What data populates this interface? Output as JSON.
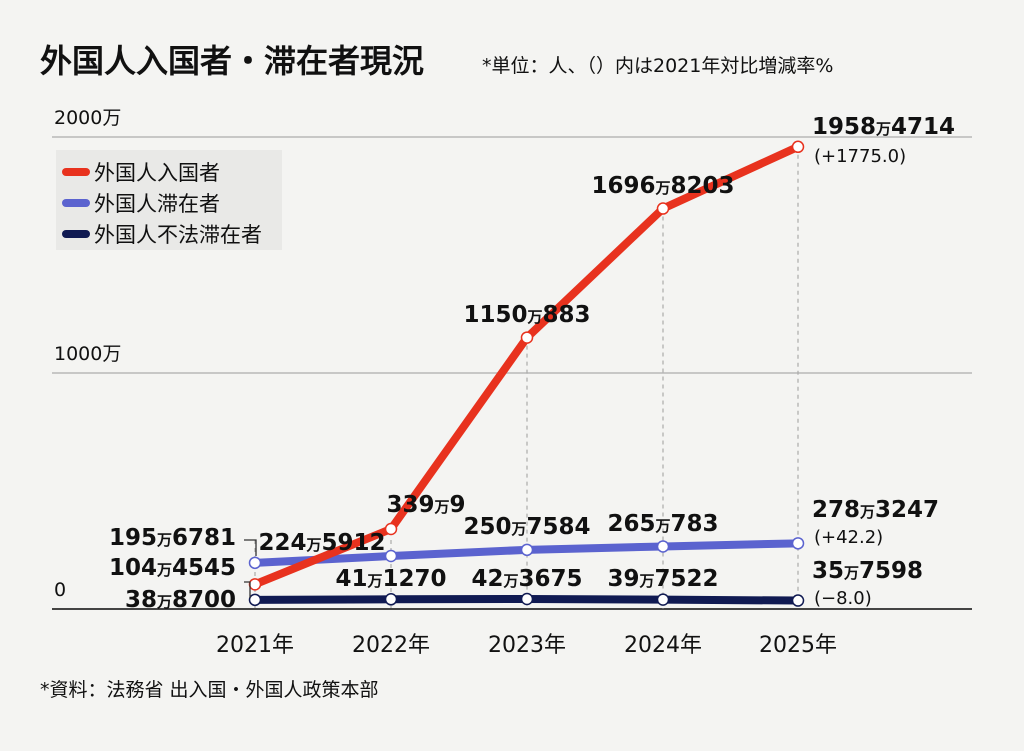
{
  "header": {
    "title": "外国人入国者・滞在者現況",
    "subtitle": "*単位：人、（）内は2021年対比増減率%"
  },
  "footer": {
    "source": "*資料：法務省 出入国・外国人政策本部"
  },
  "chart_data": {
    "type": "line",
    "categories": [
      "2021年",
      "2022年",
      "2023年",
      "2024年",
      "2025年"
    ],
    "ylim": [
      0,
      20000000
    ],
    "y_ticks": [
      {
        "value": 0,
        "label": "0"
      },
      {
        "value": 10000000,
        "label": "1000万"
      },
      {
        "value": 20000000,
        "label": "2000万"
      }
    ],
    "grid": true,
    "legend_position": "top-left",
    "series": [
      {
        "name": "外国人入国者",
        "color": "#e8321e",
        "values": [
          1044545,
          3390009,
          11500883,
          16968203,
          19584714
        ],
        "labels": [
          [
            "104",
            "万",
            "4545"
          ],
          [
            "339",
            "万",
            "9"
          ],
          [
            "1150",
            "万",
            "883"
          ],
          [
            "1696",
            "万",
            "8203"
          ],
          [
            "1958",
            "万",
            "4714"
          ]
        ],
        "change_note": "(+1775.0)"
      },
      {
        "name": "外国人滞在者",
        "color": "#5b63cf",
        "values": [
          1956781,
          2245912,
          2507584,
          2650783,
          2783247
        ],
        "labels": [
          [
            "195",
            "万",
            "6781"
          ],
          [
            "224",
            "万",
            "5912"
          ],
          [
            "250",
            "万",
            "7584"
          ],
          [
            "265",
            "万",
            "783"
          ],
          [
            "278",
            "万",
            "3247"
          ]
        ],
        "change_note": "(+42.2)"
      },
      {
        "name": "外国人不法滞在者",
        "color": "#101a52",
        "values": [
          388700,
          411270,
          423675,
          397522,
          357598
        ],
        "labels": [
          [
            "38",
            "万",
            "8700"
          ],
          [
            "41",
            "万",
            "1270"
          ],
          [
            "42",
            "万",
            "3675"
          ],
          [
            "39",
            "万",
            "7522"
          ],
          [
            "35",
            "万",
            "7598"
          ]
        ],
        "change_note": "(−8.0)"
      }
    ]
  }
}
